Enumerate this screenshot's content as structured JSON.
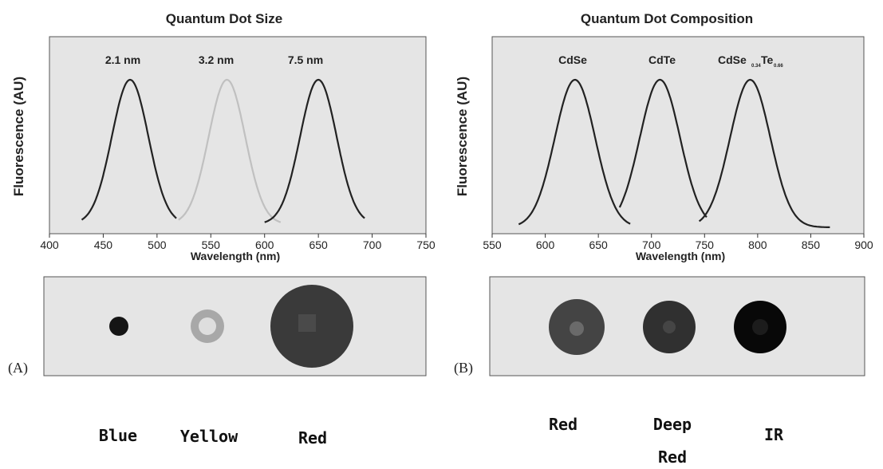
{
  "panels": [
    {
      "letter": "(A)",
      "title": "Quantum Dot Size",
      "ylabel": "Fluorescence (AU)",
      "xlabel": "Wavelength (nm)",
      "peak_labels": [
        "2.1 nm",
        "3.2 nm",
        "7.5 nm"
      ],
      "color_labels": [
        "Blue",
        "Yellow",
        "Red"
      ]
    },
    {
      "letter": "(B)",
      "title": "Quantum Dot Composition",
      "ylabel": "Fluorescence (AU)",
      "xlabel": "Wavelength (nm)",
      "peak_labels": [
        "CdSe",
        "CdTe",
        "CdSe",
        "0.34",
        "Te",
        "0.66"
      ],
      "color_labels": [
        "Red",
        "Deep",
        "Red",
        "IR"
      ]
    }
  ],
  "chart_data": [
    {
      "type": "line",
      "title": "Quantum Dot Size",
      "xlabel": "Wavelength (nm)",
      "ylabel": "Fluorescence (AU)",
      "xlim": [
        400,
        750
      ],
      "x_ticks": [
        400,
        450,
        500,
        550,
        600,
        650,
        700,
        750
      ],
      "series": [
        {
          "name": "2.1 nm",
          "peak_x": 475,
          "x_range": [
            430,
            518
          ],
          "color": "#222222"
        },
        {
          "name": "3.2 nm",
          "peak_x": 565,
          "x_range": [
            520,
            615
          ],
          "color": "#c0c0c0"
        },
        {
          "name": "7.5 nm",
          "peak_x": 650,
          "x_range": [
            600,
            693
          ],
          "color": "#222222"
        }
      ],
      "grid": false
    },
    {
      "type": "line",
      "title": "Quantum Dot Composition",
      "xlabel": "Wavelength (nm)",
      "ylabel": "Fluorescence (AU)",
      "xlim": [
        550,
        900
      ],
      "x_ticks": [
        550,
        600,
        650,
        700,
        750,
        800,
        850,
        900
      ],
      "series": [
        {
          "name": "CdSe",
          "peak_x": 628,
          "x_range": [
            575,
            680
          ],
          "color": "#222222"
        },
        {
          "name": "CdTe",
          "peak_x": 708,
          "x_range": [
            670,
            752
          ],
          "color": "#222222"
        },
        {
          "name": "CdSe0.34Te0.66",
          "peak_x": 793,
          "x_range": [
            745,
            868
          ],
          "color": "#222222"
        }
      ],
      "grid": false
    }
  ],
  "dots": [
    {
      "panel": "A",
      "label": "Blue",
      "fill": "#151515",
      "core": "#151515"
    },
    {
      "panel": "A",
      "label": "Yellow",
      "fill": "#a8a8a8",
      "core": "#dedede"
    },
    {
      "panel": "A",
      "label": "Red",
      "fill": "#3a3a3a",
      "core": "#555555"
    },
    {
      "panel": "B",
      "label": "Red",
      "fill": "#444444",
      "core": "#6a6a6a"
    },
    {
      "panel": "B",
      "label": "Deep Red",
      "fill": "#303030",
      "core": "#454545"
    },
    {
      "panel": "B",
      "label": "IR",
      "fill": "#080808",
      "core": "#1c1c1c"
    }
  ],
  "colors": {
    "panel_bg": "#e5e5e5",
    "axis": "#333333"
  }
}
